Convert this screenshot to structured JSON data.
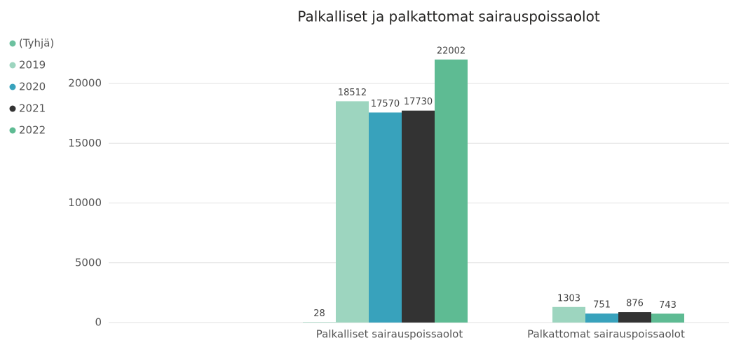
{
  "chart_data": {
    "type": "bar",
    "title": "Palkalliset ja palkattomat sairauspoissaolot",
    "categories": [
      null,
      "Palkalliset sairauspoissaolot",
      "Palkattomat sairauspoissaolot"
    ],
    "series": [
      {
        "name": "(Tyhjä)",
        "color": "#6cc19f",
        "values": [
          null,
          28,
          null
        ]
      },
      {
        "name": "2019",
        "color": "#9dd5bf",
        "values": [
          null,
          18512,
          1303
        ]
      },
      {
        "name": "2020",
        "color": "#38a2bc",
        "values": [
          null,
          17570,
          751
        ]
      },
      {
        "name": "2021",
        "color": "#333333",
        "values": [
          null,
          17730,
          876
        ]
      },
      {
        "name": "2022",
        "color": "#5ebb93",
        "values": [
          null,
          22002,
          743
        ]
      }
    ],
    "ylim": [
      0,
      22500
    ],
    "yticks": [
      0,
      5000,
      10000,
      15000,
      20000
    ],
    "grid": true,
    "legend": "top-left"
  }
}
